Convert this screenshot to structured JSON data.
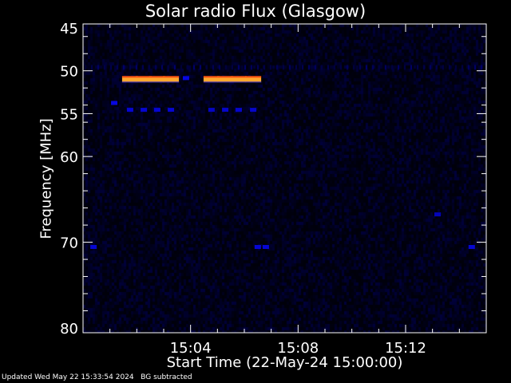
{
  "chart_data": {
    "type": "heatmap",
    "title": "Solar radio Flux (Glasgow)",
    "xlabel": "Start Time (22-May-24 15:00:00)",
    "ylabel": "Frequency [MHz]",
    "xlim_minutes": [
      0,
      15
    ],
    "ylim_mhz": [
      45,
      80
    ],
    "y_inverted": true,
    "x_ticks": [
      {
        "t": 4,
        "label": "15:04"
      },
      {
        "t": 8,
        "label": "15:08"
      },
      {
        "t": 12,
        "label": "15:12"
      }
    ],
    "y_ticks": [
      {
        "f": 45,
        "label": "45"
      },
      {
        "f": 50,
        "label": "50"
      },
      {
        "f": 55,
        "label": "55"
      },
      {
        "f": 60,
        "label": "60"
      },
      {
        "f": 70,
        "label": "70"
      },
      {
        "f": 80,
        "label": "80"
      }
    ],
    "events": [
      {
        "t": 1.75,
        "f": 50.9,
        "intensity": 0.85
      },
      {
        "t": 2.26,
        "f": 50.9,
        "intensity": 0.85
      },
      {
        "t": 2.76,
        "f": 50.9,
        "intensity": 0.85
      },
      {
        "t": 3.27,
        "f": 50.9,
        "intensity": 0.85
      },
      {
        "t": 3.83,
        "f": 50.9,
        "intensity": 0.35
      },
      {
        "t": 4.78,
        "f": 50.9,
        "intensity": 0.8
      },
      {
        "t": 5.29,
        "f": 50.9,
        "intensity": 0.85
      },
      {
        "t": 5.79,
        "f": 50.9,
        "intensity": 0.85
      },
      {
        "t": 6.33,
        "f": 50.9,
        "intensity": 0.85
      },
      {
        "t": 1.75,
        "f": 54.6,
        "intensity": 0.3
      },
      {
        "t": 2.26,
        "f": 54.6,
        "intensity": 0.3
      },
      {
        "t": 2.76,
        "f": 54.6,
        "intensity": 0.3
      },
      {
        "t": 3.27,
        "f": 54.6,
        "intensity": 0.3
      },
      {
        "t": 4.78,
        "f": 54.6,
        "intensity": 0.25
      },
      {
        "t": 5.29,
        "f": 54.6,
        "intensity": 0.28
      },
      {
        "t": 5.79,
        "f": 54.6,
        "intensity": 0.28
      },
      {
        "t": 6.33,
        "f": 54.6,
        "intensity": 0.28
      },
      {
        "t": 1.16,
        "f": 53.8,
        "intensity": 0.35
      },
      {
        "t": 0.39,
        "f": 70.6,
        "intensity": 0.3
      },
      {
        "t": 6.5,
        "f": 70.6,
        "intensity": 0.3
      },
      {
        "t": 6.8,
        "f": 70.6,
        "intensity": 0.3
      },
      {
        "t": 14.46,
        "f": 70.6,
        "intensity": 0.3
      },
      {
        "t": 13.19,
        "f": 66.8,
        "intensity": 0.22
      }
    ]
  },
  "footer": {
    "updated": "Updated Wed May 22 15:33:54 2024",
    "note": "BG subtracted"
  }
}
